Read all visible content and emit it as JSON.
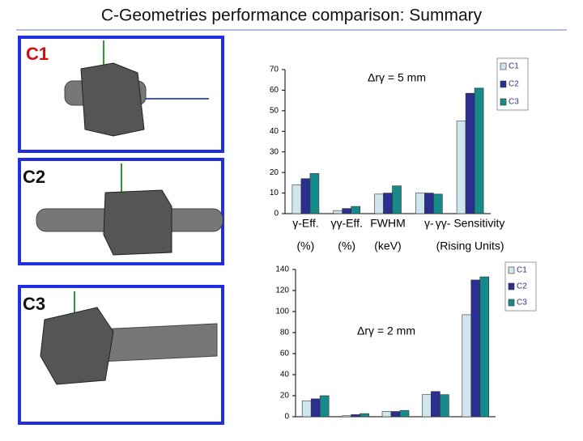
{
  "slide": {
    "title": "C-Geometries performance comparison: Summary",
    "panels": [
      "C1",
      "C2",
      "C3"
    ]
  },
  "chart_data": [
    {
      "type": "bar",
      "annotation": "Δrγ = 5 mm",
      "categories": [
        "γ-Eff.",
        "γγ-Eff.",
        "FWHM",
        "γ-",
        "γγ- Sensitivity"
      ],
      "category_units": [
        "(%)",
        "(%)",
        "(keV)",
        null,
        "(Rising Units)"
      ],
      "series": [
        {
          "name": "C1",
          "color": "#cfe6ee",
          "values": [
            14,
            1.5,
            9.5,
            10,
            45
          ]
        },
        {
          "name": "C2",
          "color": "#2b2f8f",
          "values": [
            17,
            2.5,
            10,
            10,
            58.5
          ]
        },
        {
          "name": "C3",
          "color": "#178a8a",
          "values": [
            19.5,
            3.5,
            13.5,
            9.5,
            61
          ]
        }
      ],
      "ylim": [
        0,
        70
      ],
      "yticks": [
        0,
        10,
        20,
        30,
        40,
        50,
        60,
        70
      ],
      "grid": false,
      "legend": "top-right"
    },
    {
      "type": "bar",
      "annotation": "Δrγ = 2 mm",
      "categories": [
        null,
        null,
        null,
        null,
        null
      ],
      "series": [
        {
          "name": "C1",
          "color": "#cfe6ee",
          "values": [
            15,
            1,
            5,
            21,
            97
          ]
        },
        {
          "name": "C2",
          "color": "#2b2f8f",
          "values": [
            17,
            2,
            5,
            24,
            130
          ]
        },
        {
          "name": "C3",
          "color": "#178a8a",
          "values": [
            20,
            3,
            6,
            21,
            133
          ]
        }
      ],
      "ylim": [
        0,
        140
      ],
      "yticks": [
        0,
        20,
        40,
        60,
        80,
        100,
        120,
        140
      ],
      "grid": false,
      "legend": "top-right"
    }
  ]
}
